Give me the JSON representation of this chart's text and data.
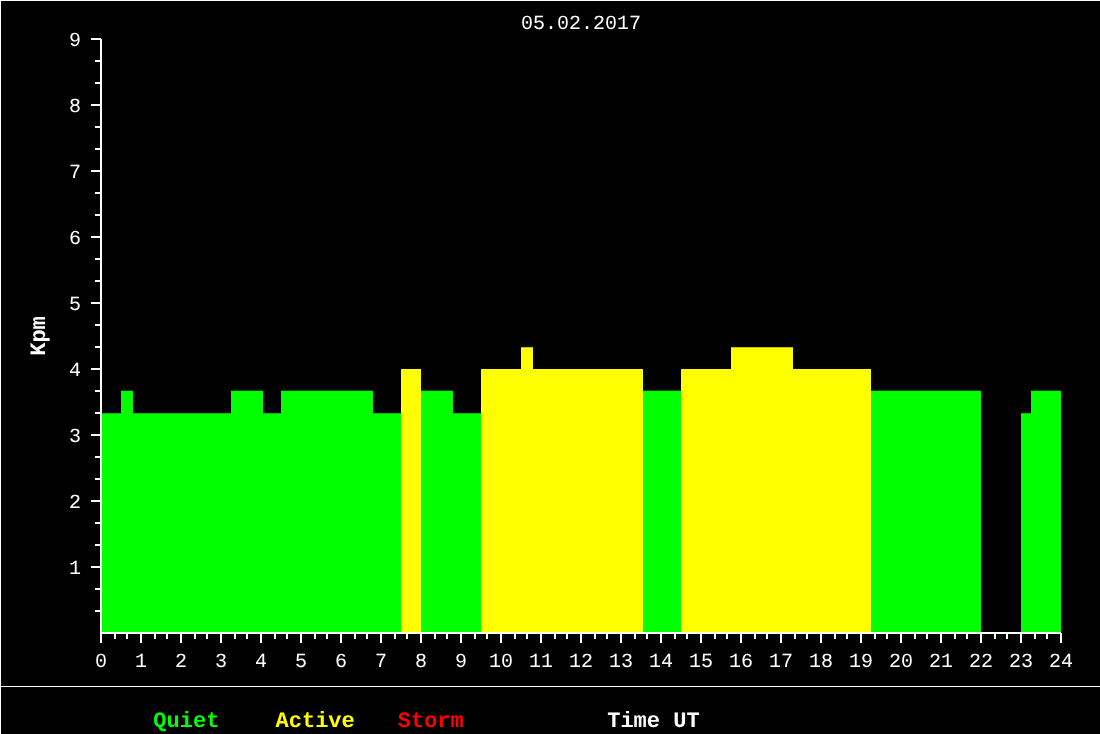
{
  "chart_data": {
    "type": "bar",
    "title": "05.02.2017",
    "xlabel": "Time UT",
    "ylabel": "Kpm",
    "x": [
      0.25,
      0.65,
      2.025,
      3.65,
      4.275,
      5.65,
      7.15,
      7.75,
      8.4,
      9.15,
      10.0,
      10.65,
      12.175,
      14.025,
      15.125,
      16.525,
      18.275,
      20.625,
      22.5,
      23.125,
      23.625
    ],
    "series": [
      {
        "name": "Quiet",
        "color": "#00ff00",
        "values": [
          3.33,
          3.67,
          3.33,
          3.67,
          3.33,
          3.67,
          3.33,
          null,
          3.67,
          3.33,
          null,
          null,
          null,
          3.67,
          null,
          null,
          null,
          3.67,
          null,
          3.33,
          3.67
        ]
      },
      {
        "name": "Active",
        "color": "#ffff00",
        "values": [
          null,
          null,
          null,
          null,
          null,
          null,
          null,
          4.0,
          null,
          null,
          4.0,
          4.33,
          4.0,
          null,
          4.0,
          4.33,
          4.0,
          null,
          null,
          null,
          null
        ]
      },
      {
        "name": "Storm",
        "color": "#ff0000",
        "values": [
          null,
          null,
          null,
          null,
          null,
          null,
          null,
          null,
          null,
          null,
          null,
          null,
          null,
          null,
          null,
          null,
          null,
          null,
          null,
          null,
          null
        ]
      }
    ],
    "xlim": [
      0,
      24
    ],
    "xticks": [
      0,
      1,
      2,
      3,
      4,
      5,
      6,
      7,
      8,
      9,
      10,
      11,
      12,
      13,
      14,
      15,
      16,
      17,
      18,
      19,
      20,
      21,
      22,
      23,
      24
    ],
    "ylim": [
      0,
      9
    ],
    "yticks": [
      1,
      2,
      3,
      4,
      5,
      6,
      7,
      8,
      9
    ],
    "grid": false
  }
}
